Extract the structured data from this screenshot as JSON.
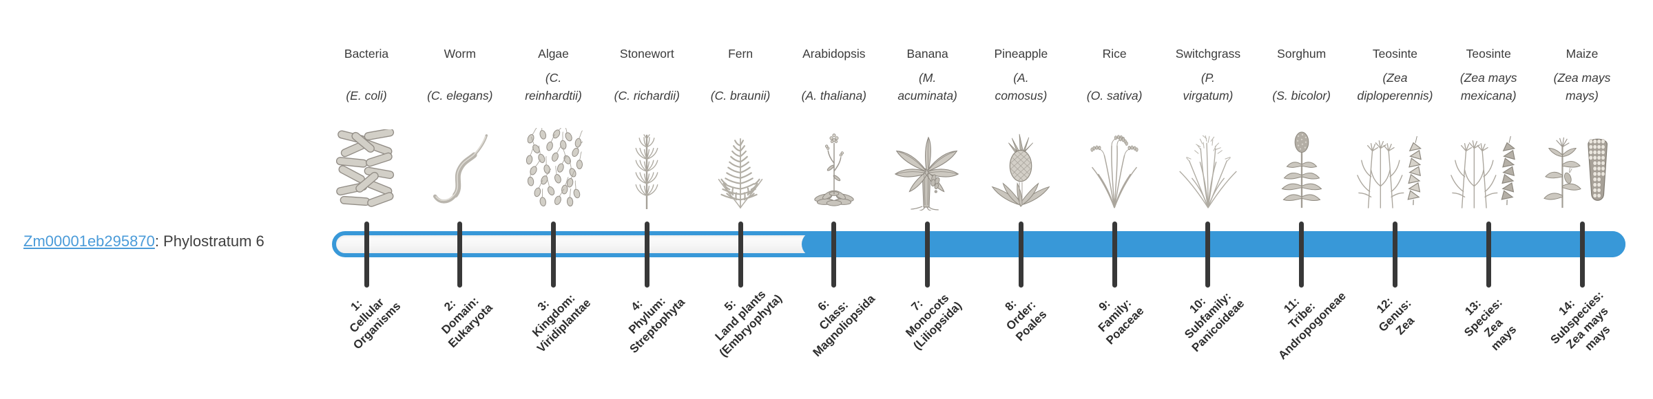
{
  "gene": {
    "id": "Zm00001eb295870",
    "suffix": ": Phylostratum 6",
    "phylostratum": 6,
    "link_color": "#4a9bd9"
  },
  "timeline": {
    "total_strata": 14,
    "filled_from_stratum": 6,
    "bar_color": "#3898d8",
    "bar_empty_color": "#f6f6f6",
    "tick_color": "#383838"
  },
  "strata": [
    {
      "index": 1,
      "organism": "Bacteria",
      "latin_lines": [
        "(E. coli)"
      ],
      "icon": "bacteria-illustration",
      "stage_lines": [
        "1:",
        "Cellular",
        "Organisms"
      ]
    },
    {
      "index": 2,
      "organism": "Worm",
      "latin_lines": [
        "(C. elegans)"
      ],
      "icon": "worm-illustration",
      "stage_lines": [
        "2:",
        "Domain:",
        "Eukaryota"
      ]
    },
    {
      "index": 3,
      "organism": "Algae",
      "latin_lines": [
        "(C.",
        "reinhardtii)"
      ],
      "icon": "algae-illustration",
      "stage_lines": [
        "3:",
        "Kingdom:",
        "Viridiplantae"
      ]
    },
    {
      "index": 4,
      "organism": "Stonewort",
      "latin_lines": [
        "(C. richardii)"
      ],
      "icon": "stonewort-illustration",
      "stage_lines": [
        "4:",
        "Phylum:",
        "Streptophyta"
      ]
    },
    {
      "index": 5,
      "organism": "Fern",
      "latin_lines": [
        "(C. braunii)"
      ],
      "icon": "fern-illustration",
      "stage_lines": [
        "5:",
        "Land plants",
        "(Embryophyta)"
      ]
    },
    {
      "index": 6,
      "organism": "Arabidopsis",
      "latin_lines": [
        "(A. thaliana)"
      ],
      "icon": "arabidopsis-illustration",
      "stage_lines": [
        "6:",
        "Class:",
        "Magnoliopsida"
      ]
    },
    {
      "index": 7,
      "organism": "Banana",
      "latin_lines": [
        "(M.",
        "acuminata)"
      ],
      "icon": "banana-illustration",
      "stage_lines": [
        "7:",
        "Monocots",
        "(Liliopsida)"
      ]
    },
    {
      "index": 8,
      "organism": "Pineapple",
      "latin_lines": [
        "(A.",
        "comosus)"
      ],
      "icon": "pineapple-illustration",
      "stage_lines": [
        "8:",
        "Order:",
        "Poales"
      ]
    },
    {
      "index": 9,
      "organism": "Rice",
      "latin_lines": [
        "(O. sativa)"
      ],
      "icon": "rice-illustration",
      "stage_lines": [
        "9:",
        "Family:",
        "Poaceae"
      ]
    },
    {
      "index": 10,
      "organism": "Switchgrass",
      "latin_lines": [
        "(P.",
        "virgatum)"
      ],
      "icon": "switchgrass-illustration",
      "stage_lines": [
        "10:",
        "Subfamily:",
        "Panicoideae"
      ]
    },
    {
      "index": 11,
      "organism": "Sorghum",
      "latin_lines": [
        "(S. bicolor)"
      ],
      "icon": "sorghum-illustration",
      "stage_lines": [
        "11:",
        "Tribe:",
        "Andropogoneae"
      ]
    },
    {
      "index": 12,
      "organism": "Teosinte",
      "latin_lines": [
        "(Zea",
        "diploperennis)"
      ],
      "icon": "teosinte-diploperennis-illustration",
      "stage_lines": [
        "12:",
        "Genus:",
        "Zea"
      ]
    },
    {
      "index": 13,
      "organism": "Teosinte",
      "latin_lines": [
        "(Zea mays",
        "mexicana)"
      ],
      "icon": "teosinte-mexicana-illustration",
      "stage_lines": [
        "13:",
        "Species:",
        "Zea",
        "mays"
      ]
    },
    {
      "index": 14,
      "organism": "Maize",
      "latin_lines": [
        "(Zea mays",
        "mays)"
      ],
      "icon": "maize-illustration",
      "stage_lines": [
        "14:",
        "Subspecies:",
        "Zea mays",
        "mays"
      ]
    }
  ]
}
